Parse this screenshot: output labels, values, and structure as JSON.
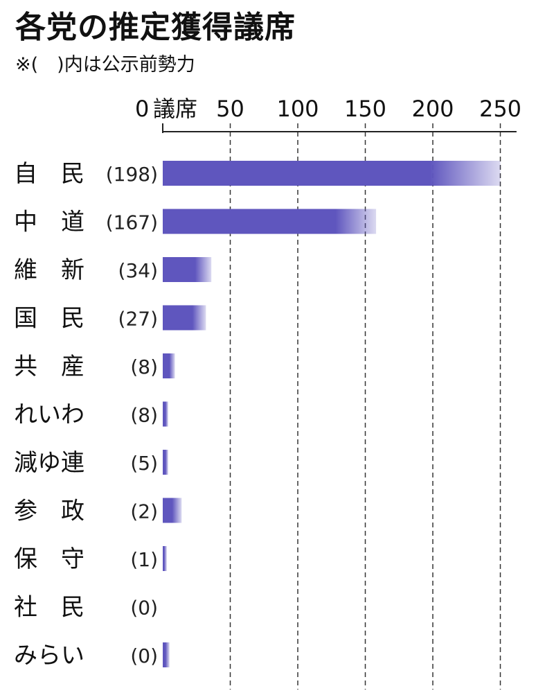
{
  "title": "各党の推定獲得議席",
  "subtitle": "※(　)内は公示前勢力",
  "chart_data": {
    "type": "bar",
    "orientation": "horizontal",
    "title": "各党の推定獲得議席",
    "subtitle": "※(　)内は公示前勢力",
    "unit": "議席",
    "xlim": [
      0,
      262
    ],
    "ticks": [
      0,
      50,
      100,
      150,
      200,
      250
    ],
    "gridlines": "dashed vertical",
    "color": "#5f56be",
    "bars": [
      {
        "party": "自　民",
        "prev": "(198)",
        "low": 198,
        "high": 250
      },
      {
        "party": "中　道",
        "prev": "(167)",
        "low": 128,
        "high": 158
      },
      {
        "party": "維　新",
        "prev": "(34)",
        "low": 24,
        "high": 36
      },
      {
        "party": "国　民",
        "prev": "(27)",
        "low": 22,
        "high": 32
      },
      {
        "party": "共　産",
        "prev": "(8)",
        "low": 5,
        "high": 9
      },
      {
        "party": "れいわ",
        "prev": "(8)",
        "low": 2,
        "high": 4
      },
      {
        "party": "減ゆ連",
        "prev": "(5)",
        "low": 2,
        "high": 4
      },
      {
        "party": "参　政",
        "prev": "(2)",
        "low": 7,
        "high": 14
      },
      {
        "party": "保　守",
        "prev": "(1)",
        "low": 1,
        "high": 3
      },
      {
        "party": "社　民",
        "prev": "(0)",
        "low": 0,
        "high": 0
      },
      {
        "party": "みらい",
        "prev": "(0)",
        "low": 2,
        "high": 5
      }
    ]
  }
}
